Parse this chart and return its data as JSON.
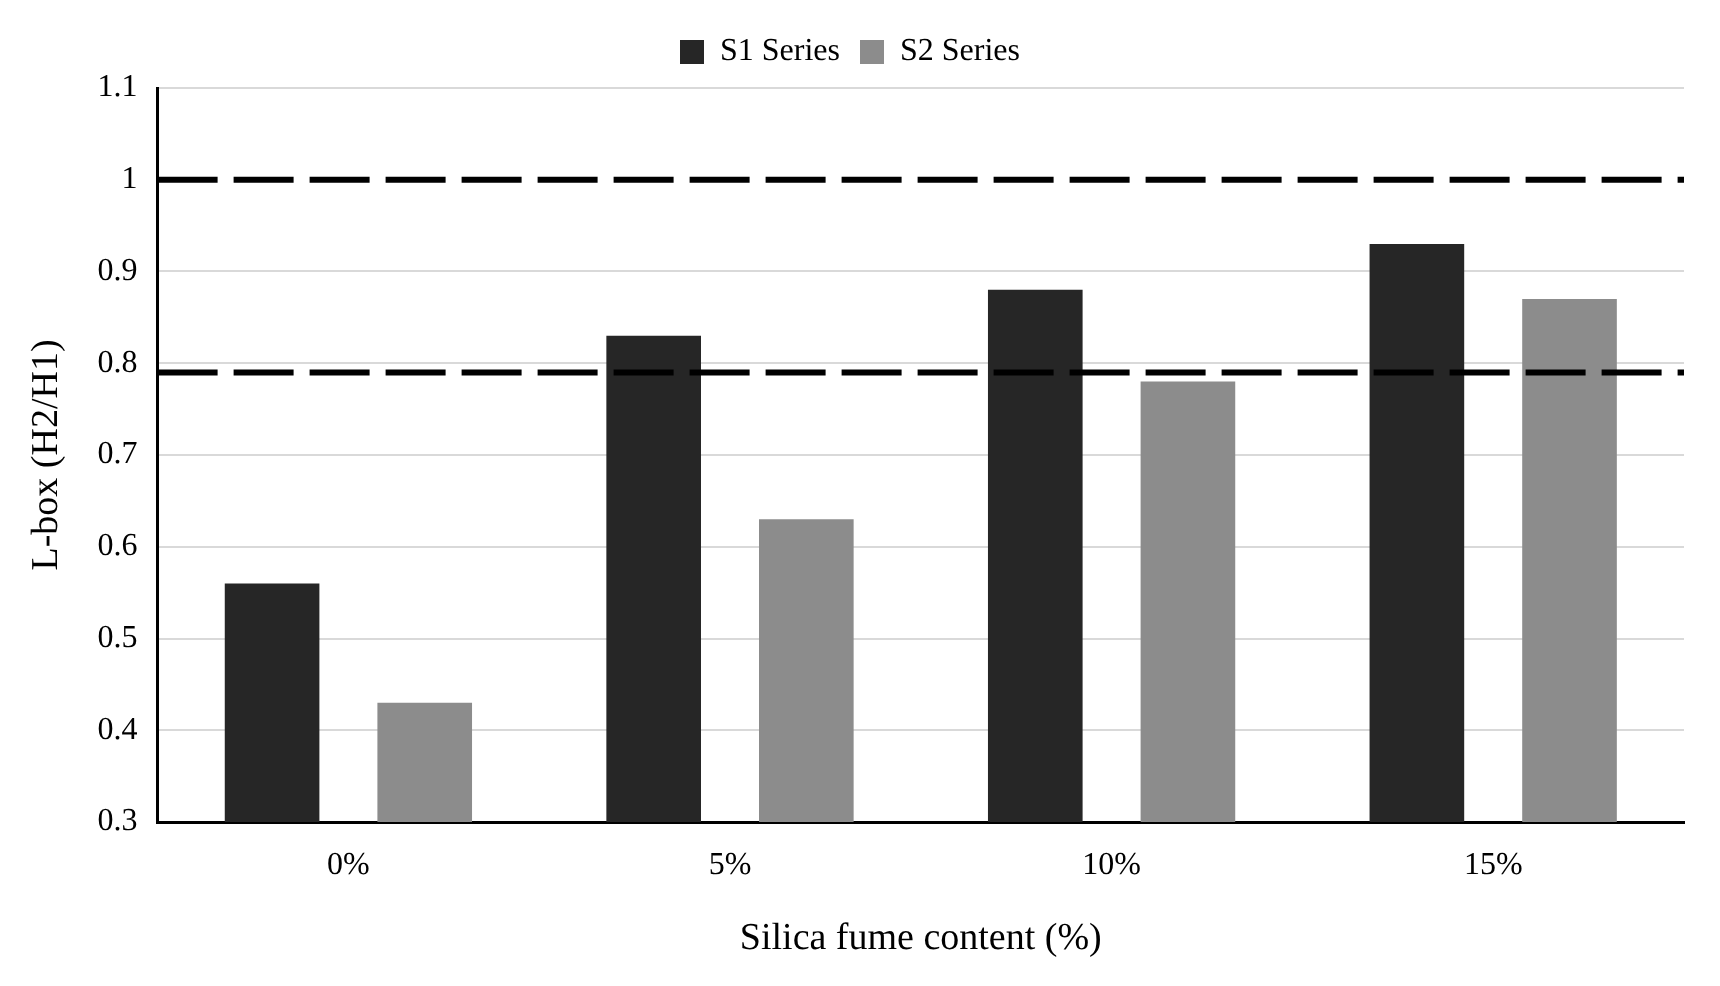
{
  "chart_data": {
    "type": "bar",
    "xlabel": "Silica fume content (%)",
    "ylabel": "L-box (H2/H1)",
    "categories": [
      "0%",
      "5%",
      "10%",
      "15%"
    ],
    "series": [
      {
        "name": "S1 Series",
        "color": "#262626",
        "values": [
          0.56,
          0.83,
          0.88,
          0.93
        ]
      },
      {
        "name": "S2 Series",
        "color": "#8c8c8c",
        "values": [
          0.43,
          0.63,
          0.78,
          0.87
        ]
      }
    ],
    "ylim": [
      0.3,
      1.1
    ],
    "yticks": [
      0.3,
      0.4,
      0.5,
      0.6,
      0.7,
      0.8,
      0.9,
      1,
      1.1
    ],
    "ref_lines": [
      {
        "axis": "y",
        "value": 1,
        "color": "#000000",
        "line_style": "dashed"
      },
      {
        "axis": "y",
        "value": 0.79,
        "color": "#000000",
        "line_style": "dashed"
      }
    ],
    "grid": "y",
    "legend": "top"
  }
}
